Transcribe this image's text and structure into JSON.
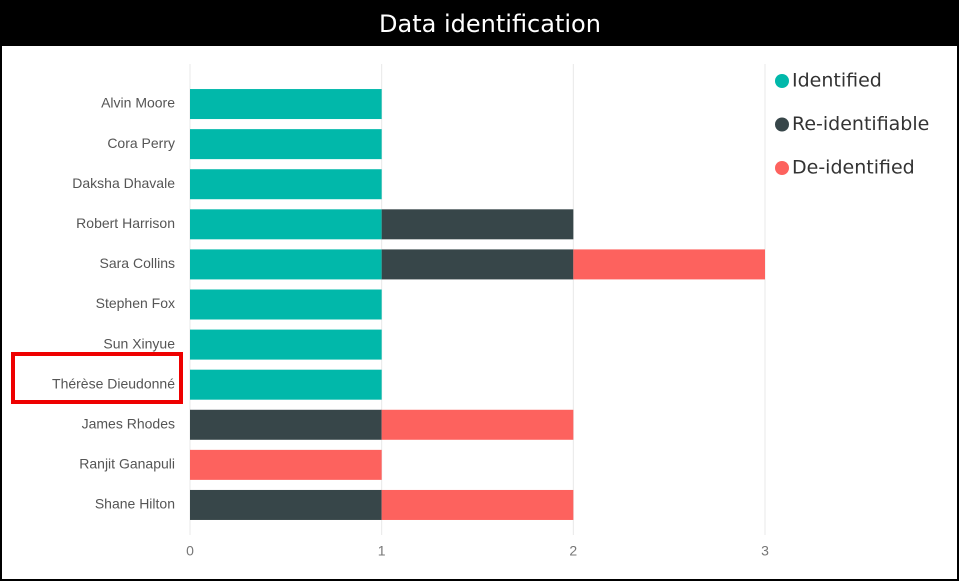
{
  "chart_data": {
    "type": "stacked-bar-horizontal",
    "title": "Data identification",
    "categories": [
      "Alvin Moore",
      "Cora Perry",
      "Daksha Dhavale",
      "Robert Harrison",
      "Sara Collins",
      "Stephen Fox",
      "Sun Xinyue",
      "Thérèse Dieudonné",
      "James Rhodes",
      "Ranjit Ganapuli",
      "Shane Hilton"
    ],
    "series": [
      {
        "name": "Identified",
        "color": "#01b8aa",
        "values": [
          1,
          1,
          1,
          1,
          1,
          1,
          1,
          1,
          0,
          0,
          0
        ]
      },
      {
        "name": "Re-identifiable",
        "color": "#374649",
        "values": [
          0,
          0,
          0,
          1,
          1,
          0,
          0,
          0,
          1,
          0,
          1
        ]
      },
      {
        "name": "De-identified",
        "color": "#fd625e",
        "values": [
          0,
          0,
          0,
          0,
          1,
          0,
          0,
          0,
          1,
          1,
          1
        ]
      }
    ],
    "xlim": [
      0,
      3
    ],
    "xticks": [
      0,
      1,
      2,
      3
    ],
    "grid": true,
    "legend": "top-right"
  }
}
